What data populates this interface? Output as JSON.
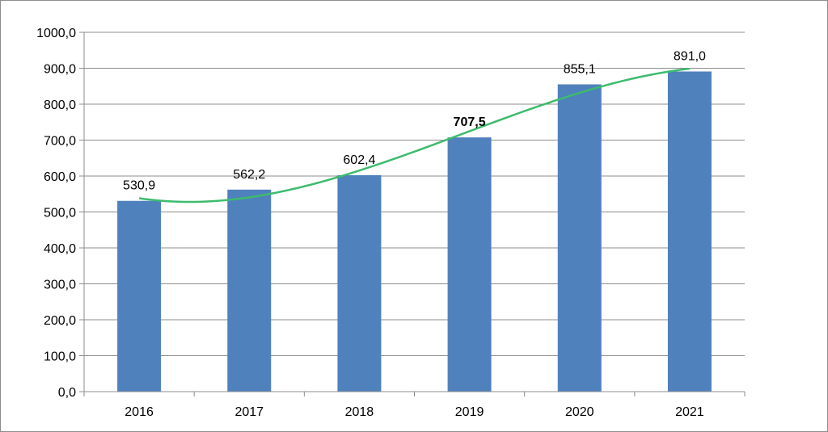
{
  "chart_data": {
    "type": "bar",
    "categories": [
      "2016",
      "2017",
      "2018",
      "2019",
      "2020",
      "2021"
    ],
    "values": [
      530.9,
      562.2,
      602.4,
      707.5,
      855.1,
      891.0
    ],
    "data_labels": [
      "530,9",
      "562,2",
      "602,4",
      "707,5",
      "855,1",
      "891,0"
    ],
    "bold_label_index": 3,
    "y_tick_labels": [
      "0,0",
      "100,0",
      "200,0",
      "300,0",
      "400,0",
      "500,0",
      "600,0",
      "700,0",
      "800,0",
      "900,0",
      "1000,0"
    ],
    "ylim": [
      0,
      1000
    ],
    "y_step": 100,
    "grid": true,
    "legend": "none",
    "trendline": {
      "type": "polynomial",
      "color": "#3dbb6e"
    },
    "colors": {
      "bar": "#4f81bd",
      "grid": "#8c8c8c",
      "axis": "#8c8c8c"
    }
  }
}
